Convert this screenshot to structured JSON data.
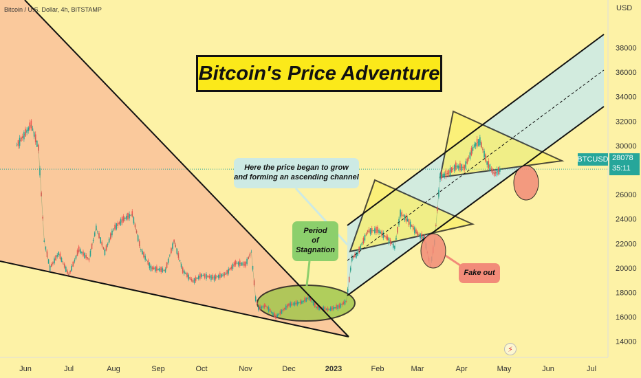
{
  "header": {
    "symbol_text": "Bitcoin / U.S. Dollar, 4h, BITSTAMP"
  },
  "title": "Bitcoin's Price Adventure",
  "annotations": {
    "channel_note_line1": "Here the price began to grow",
    "channel_note_line2": "and forming an ascending channel",
    "stagnation_line1": "Period",
    "stagnation_line2": "of",
    "stagnation_line3": "Stagnation",
    "fake_out": "Fake out"
  },
  "price_tag": {
    "symbol": "BTCUSD",
    "price": "28078",
    "countdown": "35:11"
  },
  "icons": {
    "flash": "lightning-icon"
  },
  "colors": {
    "background": "#fdf2a6",
    "down_wedge": "#f9c29a",
    "channel": "#cdeae4",
    "triangle": "#fbf06b",
    "stagnation": "#9ec64a",
    "fake_circle": "#f28b79",
    "candle_up": "#26a69a",
    "candle_down": "#ef5350",
    "price_tag": "#26a69a"
  },
  "chart_data": {
    "type": "line",
    "title": "",
    "xlabel": "",
    "ylabel": "USD",
    "ylim": [
      12300,
      40500
    ],
    "x_ticks": [
      "Jun",
      "Jul",
      "Aug",
      "Sep",
      "Oct",
      "Nov",
      "Dec",
      "2023",
      "Feb",
      "Mar",
      "Apr",
      "May",
      "Jun",
      "Jul"
    ],
    "y_ticks": [
      14000,
      16000,
      18000,
      20000,
      22000,
      24000,
      26000,
      28000,
      30000,
      32000,
      34000,
      36000,
      38000
    ],
    "y_axis_label": "USD",
    "current_price": 28078,
    "series": [
      {
        "x": [
          "2022-05-26",
          "2022-06-05",
          "2022-06-10",
          "2022-06-14",
          "2022-06-18",
          "2022-06-24",
          "2022-07-01",
          "2022-07-08",
          "2022-07-15",
          "2022-07-20",
          "2022-07-26",
          "2022-08-01",
          "2022-08-08",
          "2022-08-14",
          "2022-08-20",
          "2022-08-27",
          "2022-09-06",
          "2022-09-12",
          "2022-09-18",
          "2022-09-25",
          "2022-10-01",
          "2022-10-10",
          "2022-10-18",
          "2022-10-25",
          "2022-11-01",
          "2022-11-05",
          "2022-11-08",
          "2022-11-10",
          "2022-11-15",
          "2022-11-22",
          "2022-12-01",
          "2022-12-10",
          "2022-12-15",
          "2022-12-20",
          "2022-12-28",
          "2023-01-05",
          "2023-01-10",
          "2023-01-14",
          "2023-01-18",
          "2023-01-25",
          "2023-02-01",
          "2023-02-08",
          "2023-02-13",
          "2023-02-17",
          "2023-02-22",
          "2023-03-01",
          "2023-03-06",
          "2023-03-10",
          "2023-03-13",
          "2023-03-17",
          "2023-03-22",
          "2023-03-28",
          "2023-04-03",
          "2023-04-10",
          "2023-04-14",
          "2023-04-19",
          "2023-04-24",
          "2023-04-29"
        ],
        "y": [
          30000,
          31700,
          29800,
          22200,
          20000,
          21200,
          19400,
          21500,
          20700,
          23300,
          21300,
          23200,
          24000,
          24400,
          21500,
          20000,
          19800,
          22200,
          19800,
          18900,
          19400,
          19200,
          19500,
          20400,
          20300,
          21300,
          17500,
          16700,
          16900,
          16000,
          17000,
          17200,
          17600,
          16800,
          16600,
          16850,
          17300,
          20800,
          21200,
          23000,
          23100,
          22400,
          21700,
          24500,
          23900,
          22800,
          22400,
          20100,
          22100,
          27500,
          27700,
          28300,
          28200,
          30000,
          30400,
          28600,
          27700,
          28078
        ]
      }
    ]
  }
}
